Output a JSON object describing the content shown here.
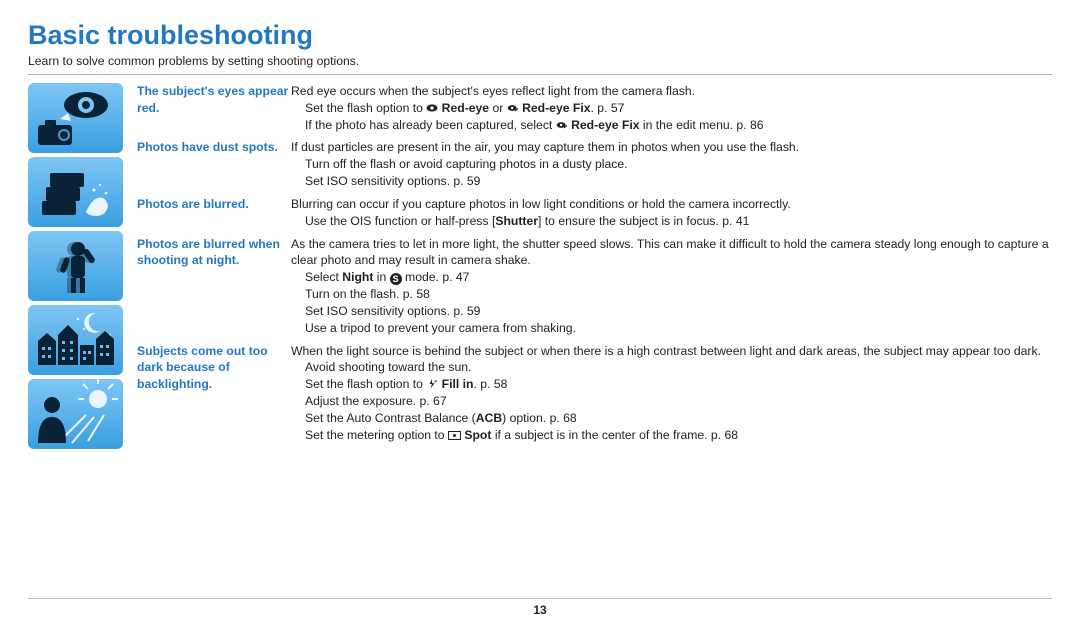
{
  "colors": {
    "title": "#2378c4",
    "label": "#2378c4",
    "text": "#222222",
    "rule": "#b0b0b0",
    "icon_bg_light": "#7fc6f4",
    "icon_bg_dark": "#3a9fe0",
    "icon_fg": "#0a2236"
  },
  "title": "Basic troubleshooting",
  "subtitle": "Learn to solve common problems by setting shooting options.",
  "page_number": "13",
  "rows": [
    {
      "label": "The subject's eyes appear red.",
      "paras": [
        {
          "t": "Red eye occurs when the subject's eyes reflect light from the camera flash.",
          "i": false
        },
        {
          "t": "Set the flash option to __EYE__ <b>Red-eye</b> or __EYEFIX__ <b>Red-eye Fix</b>. p. 57",
          "i": true
        },
        {
          "t": "If the photo has already been captured, select __EYEFIX__ <b>Red-eye Fix</b> in the edit menu. p. 86",
          "i": true
        }
      ]
    },
    {
      "label": "Photos have dust spots.",
      "paras": [
        {
          "t": "If dust particles are present in the air, you may capture them in photos when you use the flash.",
          "i": false
        },
        {
          "t": "Turn off the flash or avoid capturing photos in a dusty place.",
          "i": true
        },
        {
          "t": "Set ISO sensitivity options. p. 59",
          "i": true
        }
      ]
    },
    {
      "label": "Photos are blurred.",
      "paras": [
        {
          "t": "Blurring can occur if you capture photos in low light conditions or hold the camera incorrectly.",
          "i": false
        },
        {
          "t": "Use the OIS function or half-press [<b>Shutter</b>] to ensure the subject is in focus. p. 41",
          "i": true
        }
      ]
    },
    {
      "label": "Photos are blurred when shooting at night.",
      "paras": [
        {
          "t": "As the camera tries to let in more light, the shutter speed slows. This can make it difficult to hold the camera steady long enough to capture a clear photo and may result in camera shake.",
          "i": false
        },
        {
          "t": "Select <b>Night</b> in __S__ mode. p. 47",
          "i": true
        },
        {
          "t": "Turn on the flash. p. 58",
          "i": true
        },
        {
          "t": "Set ISO sensitivity options. p. 59",
          "i": true
        },
        {
          "t": "Use a tripod to prevent your camera from shaking.",
          "i": true
        }
      ]
    },
    {
      "label": "Subjects come out too dark because of backlighting.",
      "paras": [
        {
          "t": "When the light source is behind the subject or when there is a high contrast between light and dark areas, the subject may appear too dark.",
          "i": false
        },
        {
          "t": "Avoid shooting toward the sun.",
          "i": true
        },
        {
          "t": "Set the flash option to __FLASH__ <b>Fill in</b>. p. 58",
          "i": true
        },
        {
          "t": "Adjust the exposure. p. 67",
          "i": true
        },
        {
          "t": "Set the Auto Contrast Balance (<b>ACB</b>) option. p. 68",
          "i": true
        },
        {
          "t": "Set the metering option to __SPOT__ <b>Spot</b> if a subject is in the center of the frame. p. 68",
          "i": true
        }
      ]
    }
  ]
}
